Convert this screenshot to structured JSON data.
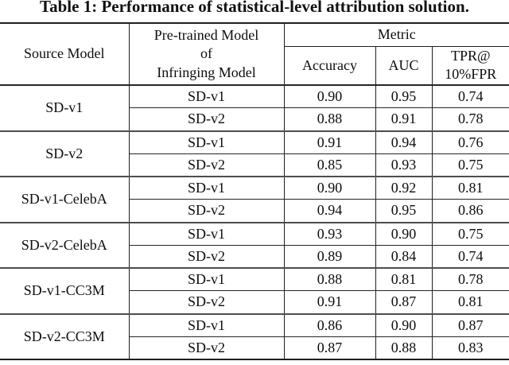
{
  "caption": "Table 1: Performance of statistical-level attribution solution.",
  "headers": {
    "source_model": "Source Model",
    "pretrained_model": "Pre-trained Model\nof\nInfringing Model",
    "metric": "Metric",
    "accuracy": "Accuracy",
    "auc": "AUC",
    "tpr": "TPR@\n10%FPR"
  },
  "groups": [
    {
      "source": "SD-v1",
      "rows": [
        {
          "pretrained": "SD-v1",
          "accuracy": "0.90",
          "auc": "0.95",
          "tpr": "0.74"
        },
        {
          "pretrained": "SD-v2",
          "accuracy": "0.88",
          "auc": "0.91",
          "tpr": "0.78"
        }
      ]
    },
    {
      "source": "SD-v2",
      "rows": [
        {
          "pretrained": "SD-v1",
          "accuracy": "0.91",
          "auc": "0.94",
          "tpr": "0.76"
        },
        {
          "pretrained": "SD-v2",
          "accuracy": "0.85",
          "auc": "0.93",
          "tpr": "0.75"
        }
      ]
    },
    {
      "source": "SD-v1-CelebA",
      "rows": [
        {
          "pretrained": "SD-v1",
          "accuracy": "0.90",
          "auc": "0.92",
          "tpr": "0.81"
        },
        {
          "pretrained": "SD-v2",
          "accuracy": "0.94",
          "auc": "0.95",
          "tpr": "0.86"
        }
      ]
    },
    {
      "source": "SD-v2-CelebA",
      "rows": [
        {
          "pretrained": "SD-v1",
          "accuracy": "0.93",
          "auc": "0.90",
          "tpr": "0.75"
        },
        {
          "pretrained": "SD-v2",
          "accuracy": "0.89",
          "auc": "0.84",
          "tpr": "0.74"
        }
      ]
    },
    {
      "source": "SD-v1-CC3M",
      "rows": [
        {
          "pretrained": "SD-v1",
          "accuracy": "0.88",
          "auc": "0.81",
          "tpr": "0.78"
        },
        {
          "pretrained": "SD-v2",
          "accuracy": "0.91",
          "auc": "0.87",
          "tpr": "0.81"
        }
      ]
    },
    {
      "source": "SD-v2-CC3M",
      "rows": [
        {
          "pretrained": "SD-v1",
          "accuracy": "0.86",
          "auc": "0.90",
          "tpr": "0.87"
        },
        {
          "pretrained": "SD-v2",
          "accuracy": "0.87",
          "auc": "0.88",
          "tpr": "0.83"
        }
      ]
    }
  ],
  "chart_data": {
    "type": "table",
    "title": "Table 1: Performance of statistical-level attribution solution.",
    "columns": [
      "Source Model",
      "Pre-trained Model of Infringing Model",
      "Accuracy",
      "AUC",
      "TPR@10%FPR"
    ],
    "rows": [
      [
        "SD-v1",
        "SD-v1",
        0.9,
        0.95,
        0.74
      ],
      [
        "SD-v1",
        "SD-v2",
        0.88,
        0.91,
        0.78
      ],
      [
        "SD-v2",
        "SD-v1",
        0.91,
        0.94,
        0.76
      ],
      [
        "SD-v2",
        "SD-v2",
        0.85,
        0.93,
        0.75
      ],
      [
        "SD-v1-CelebA",
        "SD-v1",
        0.9,
        0.92,
        0.81
      ],
      [
        "SD-v1-CelebA",
        "SD-v2",
        0.94,
        0.95,
        0.86
      ],
      [
        "SD-v2-CelebA",
        "SD-v1",
        0.93,
        0.9,
        0.75
      ],
      [
        "SD-v2-CelebA",
        "SD-v2",
        0.89,
        0.84,
        0.74
      ],
      [
        "SD-v1-CC3M",
        "SD-v1",
        0.88,
        0.81,
        0.78
      ],
      [
        "SD-v1-CC3M",
        "SD-v2",
        0.91,
        0.87,
        0.81
      ],
      [
        "SD-v2-CC3M",
        "SD-v1",
        0.86,
        0.9,
        0.87
      ],
      [
        "SD-v2-CC3M",
        "SD-v2",
        0.87,
        0.88,
        0.83
      ]
    ]
  }
}
